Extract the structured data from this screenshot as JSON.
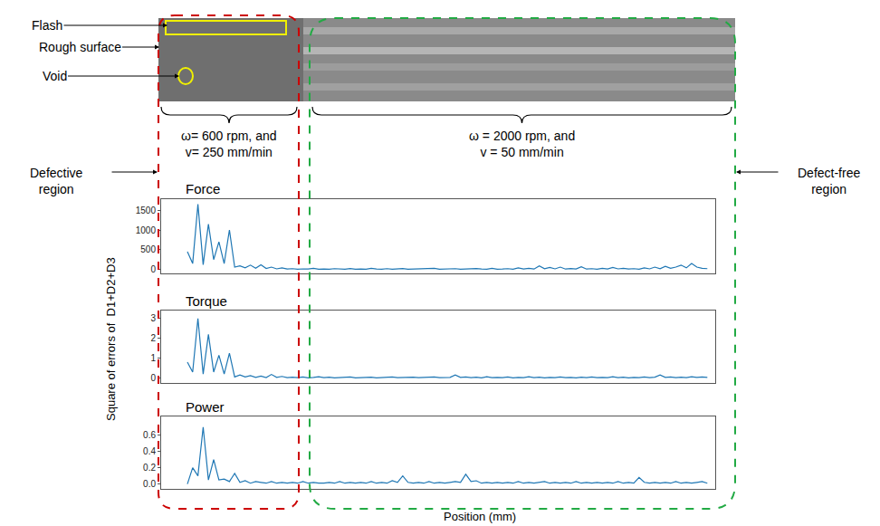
{
  "figure": {
    "ylabel": "Square of errors of  D1+D2+D3",
    "xlabel": "Position (mm)",
    "image": {
      "labels": [
        "Flash",
        "Rough surface",
        "Void"
      ]
    },
    "regions": [
      {
        "label": "Defective region",
        "parameters": [
          "ω= 600 rpm, and",
          "v= 250 mm/min"
        ],
        "color": "#cc0000"
      },
      {
        "label": "Defect-free region",
        "parameters": [
          "ω = 2000 rpm, and",
          "v = 50 mm/min"
        ],
        "color": "#22aa44"
      }
    ]
  },
  "chart_data": [
    {
      "type": "line",
      "title": "Force",
      "color": "#1f77b4",
      "grid": false,
      "tick_labels": "y",
      "xlim": [
        -5,
        100.5
      ],
      "ylim": [
        -100,
        1780
      ],
      "yticks": [
        0,
        500,
        1000,
        1500
      ],
      "x": [
        0,
        1,
        2,
        3,
        4,
        5,
        6,
        7,
        8,
        9,
        10,
        11,
        12,
        13,
        14,
        15,
        16,
        17,
        18,
        19,
        20,
        21,
        22,
        23,
        24,
        25,
        26,
        27,
        28,
        29,
        30,
        31,
        32,
        33,
        34,
        35,
        36,
        37,
        38,
        39,
        40,
        41,
        42,
        43,
        44,
        45,
        46,
        47,
        48,
        49,
        50,
        51,
        52,
        53,
        54,
        55,
        56,
        57,
        58,
        59,
        60,
        61,
        62,
        63,
        64,
        65,
        66,
        67,
        68,
        69,
        70,
        71,
        72,
        73,
        74,
        75,
        76,
        77,
        78,
        79,
        80,
        81,
        82,
        83,
        84,
        85,
        86,
        87,
        88,
        89,
        90,
        91,
        92,
        93,
        94,
        95,
        96,
        97,
        98,
        99
      ],
      "values": [
        450,
        150,
        1650,
        120,
        1150,
        250,
        700,
        150,
        1000,
        60,
        90,
        40,
        110,
        30,
        120,
        25,
        60,
        15,
        40,
        10,
        20,
        8,
        15,
        10,
        30,
        8,
        12,
        6,
        20,
        10,
        8,
        25,
        6,
        12,
        8,
        30,
        10,
        8,
        20,
        6,
        10,
        25,
        8,
        12,
        6,
        18,
        10,
        30,
        8,
        12,
        10,
        20,
        6,
        15,
        8,
        22,
        10,
        8,
        30,
        6,
        10,
        20,
        8,
        40,
        12,
        30,
        10,
        90,
        20,
        50,
        15,
        60,
        10,
        25,
        12,
        70,
        10,
        20,
        8,
        30,
        12,
        50,
        15,
        30,
        10,
        20,
        8,
        40,
        15,
        60,
        20,
        80,
        30,
        60,
        110,
        40,
        150,
        60,
        30,
        20
      ]
    },
    {
      "type": "line",
      "title": "Torque",
      "color": "#1f77b4",
      "grid": false,
      "tick_labels": "y",
      "xlim": [
        -5,
        100.5
      ],
      "ylim": [
        -0.25,
        3.4
      ],
      "yticks": [
        0,
        1,
        2,
        3
      ],
      "x": [
        0,
        1,
        2,
        3,
        4,
        5,
        6,
        7,
        8,
        9,
        10,
        11,
        12,
        13,
        14,
        15,
        16,
        17,
        18,
        19,
        20,
        21,
        22,
        23,
        24,
        25,
        26,
        27,
        28,
        29,
        30,
        31,
        32,
        33,
        34,
        35,
        36,
        37,
        38,
        39,
        40,
        41,
        42,
        43,
        44,
        45,
        46,
        47,
        48,
        49,
        50,
        51,
        52,
        53,
        54,
        55,
        56,
        57,
        58,
        59,
        60,
        61,
        62,
        63,
        64,
        65,
        66,
        67,
        68,
        69,
        70,
        71,
        72,
        73,
        74,
        75,
        76,
        77,
        78,
        79,
        80,
        81,
        82,
        83,
        84,
        85,
        86,
        87,
        88,
        89,
        90,
        91,
        92,
        93,
        94,
        95,
        96,
        97,
        98,
        99
      ],
      "values": [
        0.8,
        0.3,
        3.0,
        0.2,
        2.2,
        0.3,
        1.15,
        0.2,
        1.25,
        0.05,
        0.15,
        0.05,
        0.12,
        0.03,
        0.1,
        0.02,
        0.18,
        0.03,
        0.08,
        0.02,
        0.04,
        0.02,
        0.05,
        0.01,
        0.03,
        0.06,
        0.02,
        0.04,
        0.01,
        0.03,
        0.02,
        0.05,
        0.01,
        0.03,
        0.02,
        0.04,
        0.01,
        0.03,
        0.02,
        0.05,
        0.02,
        0.03,
        0.01,
        0.04,
        0.02,
        0.03,
        0.01,
        0.05,
        0.02,
        0.04,
        0.03,
        0.15,
        0.03,
        0.05,
        0.02,
        0.04,
        0.01,
        0.06,
        0.02,
        0.03,
        0.02,
        0.05,
        0.01,
        0.03,
        0.02,
        0.06,
        0.02,
        0.04,
        0.01,
        0.03,
        0.02,
        0.05,
        0.02,
        0.03,
        0.01,
        0.04,
        0.02,
        0.05,
        0.02,
        0.03,
        0.02,
        0.06,
        0.02,
        0.04,
        0.01,
        0.03,
        0.02,
        0.05,
        0.02,
        0.04,
        0.15,
        0.03,
        0.05,
        0.02,
        0.04,
        0.02,
        0.06,
        0.03,
        0.05,
        0.03
      ]
    },
    {
      "type": "line",
      "title": "Power",
      "color": "#1f77b4",
      "grid": false,
      "tick_labels": "y",
      "xlim": [
        -5,
        100.5
      ],
      "ylim": [
        -0.06,
        0.83
      ],
      "yticks": [
        {
          "value": 0,
          "label": "0.0"
        },
        {
          "value": 0.2,
          "label": "0.2"
        },
        {
          "value": 0.4,
          "label": "0.4"
        },
        {
          "value": 0.6,
          "label": "0.6"
        }
      ],
      "x": [
        0,
        1,
        2,
        3,
        4,
        5,
        6,
        7,
        8,
        9,
        10,
        11,
        12,
        13,
        14,
        15,
        16,
        17,
        18,
        19,
        20,
        21,
        22,
        23,
        24,
        25,
        26,
        27,
        28,
        29,
        30,
        31,
        32,
        33,
        34,
        35,
        36,
        37,
        38,
        39,
        40,
        41,
        42,
        43,
        44,
        45,
        46,
        47,
        48,
        49,
        50,
        51,
        52,
        53,
        54,
        55,
        56,
        57,
        58,
        59,
        60,
        61,
        62,
        63,
        64,
        65,
        66,
        67,
        68,
        69,
        70,
        71,
        72,
        73,
        74,
        75,
        76,
        77,
        78,
        79,
        80,
        81,
        82,
        83,
        84,
        85,
        86,
        87,
        88,
        89,
        90,
        91,
        92,
        93,
        94,
        95,
        96,
        97,
        98,
        99
      ],
      "values": [
        0.0,
        0.2,
        0.1,
        0.7,
        0.05,
        0.3,
        0.05,
        0.06,
        0.03,
        0.13,
        0.02,
        0.04,
        0.01,
        0.03,
        0.02,
        0.01,
        0.03,
        0.01,
        0.02,
        0.01,
        0.02,
        0.01,
        0.03,
        0.01,
        0.02,
        0.01,
        0.01,
        0.02,
        0.01,
        0.03,
        0.01,
        0.02,
        0.01,
        0.02,
        0.01,
        0.03,
        0.01,
        0.02,
        0.01,
        0.04,
        0.02,
        0.1,
        0.02,
        0.01,
        0.02,
        0.01,
        0.03,
        0.01,
        0.02,
        0.01,
        0.02,
        0.03,
        0.02,
        0.12,
        0.03,
        0.04,
        0.01,
        0.02,
        0.01,
        0.02,
        0.01,
        0.02,
        0.01,
        0.03,
        0.01,
        0.02,
        0.01,
        0.02,
        0.03,
        0.01,
        0.02,
        0.01,
        0.02,
        0.01,
        0.03,
        0.01,
        0.02,
        0.01,
        0.02,
        0.01,
        0.02,
        0.01,
        0.03,
        0.01,
        0.02,
        0.01,
        0.08,
        0.02,
        0.01,
        0.02,
        0.01,
        0.02,
        0.01,
        0.03,
        0.01,
        0.02,
        0.01,
        0.02,
        0.03,
        0.01
      ]
    }
  ]
}
